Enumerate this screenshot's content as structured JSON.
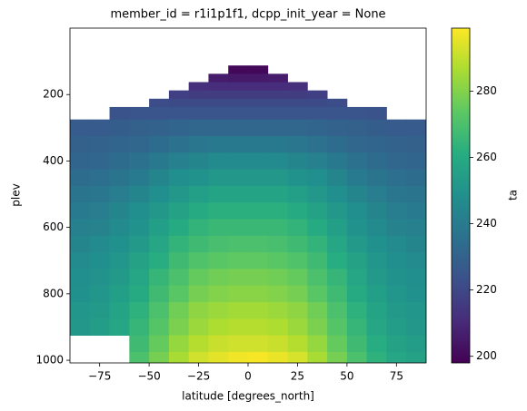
{
  "chart_data": {
    "type": "heatmap",
    "title": "member_id = r1i1p1f1, dcpp_init_year = None",
    "xlabel": "latitude [degrees_north]",
    "ylabel": "plev",
    "colorbar_label": "ta",
    "colormap": "viridis",
    "x": [
      -85,
      -75,
      -65,
      -55,
      -45,
      -35,
      -25,
      -15,
      -5,
      5,
      15,
      25,
      35,
      45,
      55,
      65,
      75,
      85
    ],
    "y": [
      125,
      150,
      175,
      200,
      225,
      250,
      300,
      350,
      400,
      450,
      500,
      550,
      600,
      650,
      700,
      750,
      800,
      850,
      900,
      950,
      1000
    ],
    "values": [
      [
        null,
        null,
        null,
        null,
        null,
        null,
        null,
        null,
        200,
        200,
        null,
        null,
        null,
        null,
        null,
        null,
        null,
        null
      ],
      [
        null,
        null,
        null,
        null,
        null,
        null,
        null,
        206,
        205,
        205,
        206,
        null,
        null,
        null,
        null,
        null,
        null,
        null
      ],
      [
        null,
        null,
        null,
        null,
        null,
        null,
        212,
        211,
        211,
        211,
        211,
        212,
        null,
        null,
        null,
        null,
        null,
        null
      ],
      [
        null,
        null,
        null,
        null,
        null,
        217,
        216,
        216,
        216,
        216,
        216,
        216,
        217,
        null,
        null,
        null,
        null,
        null
      ],
      [
        null,
        null,
        null,
        null,
        222,
        221,
        221,
        221,
        221,
        221,
        221,
        221,
        221,
        222,
        null,
        null,
        null,
        null
      ],
      [
        null,
        null,
        224,
        225,
        225,
        225,
        225,
        225,
        225,
        225,
        225,
        225,
        225,
        225,
        225,
        224,
        null,
        null
      ],
      [
        227,
        227,
        228,
        229,
        230,
        231,
        232,
        232,
        232,
        232,
        232,
        232,
        231,
        230,
        229,
        228,
        227,
        227
      ],
      [
        229,
        230,
        231,
        232,
        234,
        236,
        238,
        239,
        239,
        239,
        239,
        238,
        236,
        234,
        232,
        231,
        230,
        229
      ],
      [
        231,
        232,
        234,
        236,
        239,
        242,
        244,
        246,
        246,
        246,
        246,
        244,
        242,
        239,
        236,
        234,
        232,
        231
      ],
      [
        234,
        235,
        237,
        240,
        244,
        248,
        250,
        252,
        252,
        252,
        252,
        250,
        248,
        244,
        240,
        237,
        235,
        234
      ],
      [
        237,
        238,
        241,
        244,
        248,
        252,
        255,
        257,
        257,
        257,
        257,
        255,
        252,
        248,
        244,
        241,
        238,
        237
      ],
      [
        240,
        241,
        244,
        248,
        252,
        256,
        260,
        262,
        262,
        262,
        262,
        260,
        256,
        252,
        248,
        244,
        241,
        240
      ],
      [
        242,
        243,
        246,
        250,
        255,
        260,
        264,
        266,
        266,
        266,
        266,
        264,
        260,
        255,
        250,
        246,
        243,
        242
      ],
      [
        244,
        246,
        249,
        253,
        258,
        264,
        267,
        269,
        270,
        270,
        269,
        267,
        264,
        258,
        253,
        249,
        246,
        244
      ],
      [
        246,
        248,
        251,
        256,
        261,
        267,
        271,
        273,
        274,
        274,
        273,
        271,
        267,
        261,
        256,
        251,
        248,
        246
      ],
      [
        248,
        250,
        253,
        258,
        265,
        270,
        275,
        277,
        278,
        278,
        277,
        275,
        270,
        265,
        258,
        253,
        250,
        248
      ],
      [
        249,
        251,
        255,
        260,
        267,
        273,
        278,
        280,
        281,
        281,
        280,
        278,
        273,
        267,
        260,
        255,
        251,
        249
      ],
      [
        251,
        253,
        257,
        263,
        270,
        277,
        282,
        284,
        285,
        285,
        284,
        282,
        277,
        270,
        263,
        257,
        253,
        251
      ],
      [
        252,
        254,
        258,
        265,
        272,
        279,
        284,
        287,
        288,
        288,
        287,
        284,
        279,
        272,
        265,
        258,
        254,
        252
      ],
      [
        null,
        null,
        null,
        267,
        275,
        283,
        288,
        291,
        292,
        292,
        291,
        288,
        283,
        275,
        267,
        261,
        256,
        254
      ],
      [
        null,
        null,
        null,
        270,
        278,
        286,
        292,
        295,
        297,
        298,
        296,
        293,
        286,
        278,
        270,
        263,
        258,
        256
      ]
    ],
    "xlim": [
      -90,
      90
    ],
    "ylim": [
      1008,
      0
    ],
    "xticks": [
      {
        "value": -75,
        "label": "−75"
      },
      {
        "value": -50,
        "label": "−50"
      },
      {
        "value": -25,
        "label": "−25"
      },
      0,
      25,
      50,
      75
    ],
    "yticks": [
      200,
      400,
      600,
      800,
      1000
    ],
    "clim": [
      198,
      299
    ],
    "cticks": [
      200,
      220,
      240,
      260,
      280
    ]
  }
}
